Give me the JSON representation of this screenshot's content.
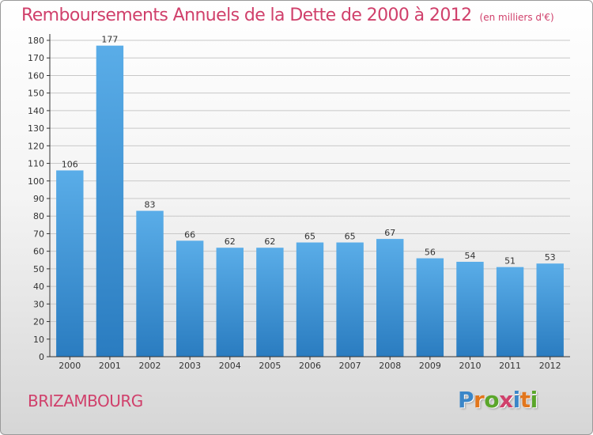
{
  "title": "Remboursements Annuels de la Dette de 2000 à 2012",
  "subtitle": "(en milliers d'€)",
  "commune": "BRIZAMBOURG",
  "logo": {
    "letters": [
      "P",
      "r",
      "o",
      "x",
      "i",
      "t",
      "i"
    ],
    "colors": [
      "#3a86c8",
      "#e2761c",
      "#5aa62a",
      "#d0406b",
      "#3a86c8",
      "#e2761c",
      "#5aa62a"
    ]
  },
  "colors": {
    "bar_top": "#5aade8",
    "bar_bottom": "#2a7cc0",
    "accent": "#d0406b",
    "axis": "#333333",
    "grid": "#c8c8c8"
  },
  "chart_data": {
    "type": "bar",
    "categories": [
      "2000",
      "2001",
      "2002",
      "2003",
      "2004",
      "2005",
      "2006",
      "2007",
      "2008",
      "2009",
      "2010",
      "2011",
      "2012"
    ],
    "values": [
      106,
      177,
      83,
      66,
      62,
      62,
      65,
      65,
      67,
      56,
      54,
      51,
      53
    ],
    "ylim": [
      0,
      180
    ],
    "yticks": [
      0,
      10,
      20,
      30,
      40,
      50,
      60,
      70,
      80,
      90,
      100,
      110,
      120,
      130,
      140,
      150,
      160,
      170,
      180
    ],
    "grid": true,
    "data_labels": true
  }
}
